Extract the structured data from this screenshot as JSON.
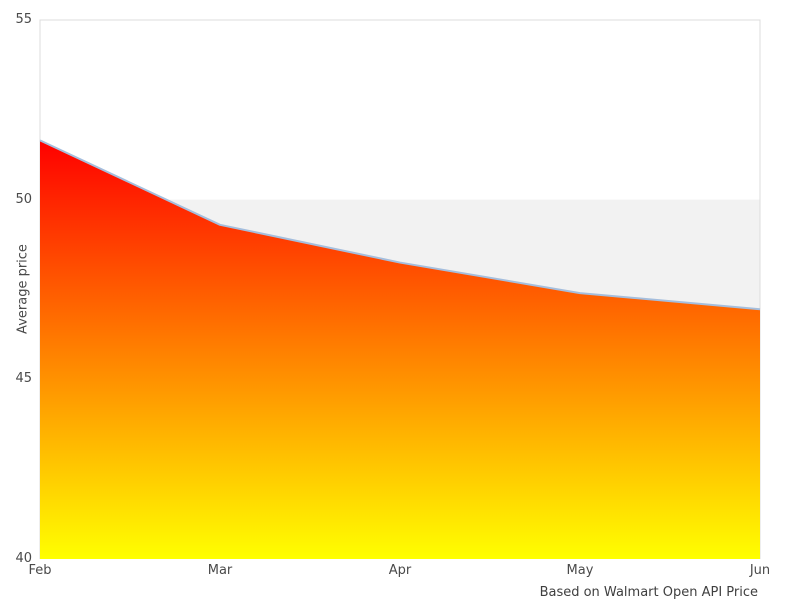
{
  "chart_data": {
    "type": "area",
    "categories": [
      "Feb",
      "Mar",
      "Apr",
      "May",
      "Jun"
    ],
    "values": [
      51.65,
      49.3,
      48.25,
      47.4,
      46.95
    ],
    "title": "",
    "xlabel": "",
    "ylabel": "Average price",
    "ylim": [
      40,
      55
    ],
    "yticks": [
      55,
      50,
      45,
      40
    ],
    "grid": false,
    "alternate_band": [
      45,
      50
    ],
    "legend": "none",
    "caption": "Based on Walmart Open API Price",
    "colors": {
      "gradient_top": "#ff0000",
      "gradient_bottom": "#ffff00",
      "line": "#a5bedd",
      "band": "#f2f2f2",
      "frame": "#dcdcdc",
      "tick_text": "#4a4a4a",
      "caption_text": "#3f3f3f",
      "background": "#ffffff"
    }
  }
}
